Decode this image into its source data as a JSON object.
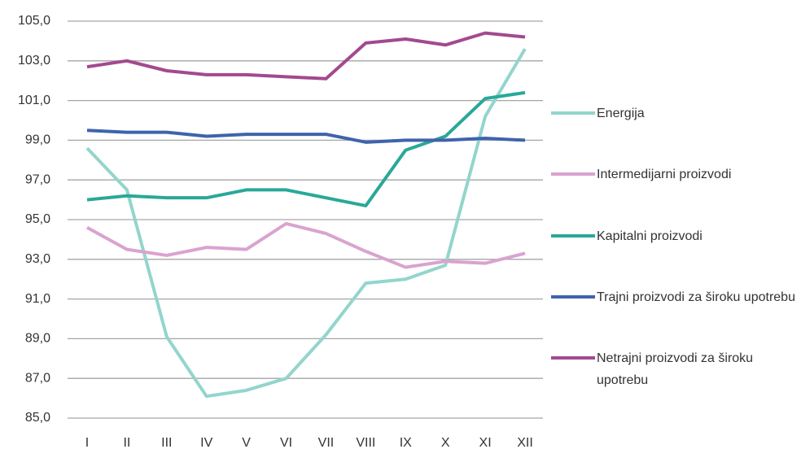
{
  "chart_data": {
    "type": "line",
    "categories": [
      "I",
      "II",
      "III",
      "IV",
      "V",
      "VI",
      "VII",
      "VIII",
      "IX",
      "X",
      "XI",
      "XII"
    ],
    "series": [
      {
        "name": "Energija",
        "color": "#93d5cc",
        "values": [
          98.6,
          96.5,
          89.1,
          86.1,
          86.4,
          87.0,
          89.2,
          91.8,
          92.0,
          92.7,
          100.2,
          103.6
        ]
      },
      {
        "name": "Intermedijarni proizvodi",
        "color": "#d9a3d0",
        "values": [
          94.6,
          93.5,
          93.2,
          93.6,
          93.5,
          94.8,
          94.3,
          93.4,
          92.6,
          92.9,
          92.8,
          93.3
        ]
      },
      {
        "name": "Kapitalni proizvodi",
        "color": "#2aa898",
        "values": [
          96.0,
          96.2,
          96.1,
          96.1,
          96.5,
          96.5,
          96.1,
          95.7,
          98.5,
          99.2,
          101.1,
          101.4
        ]
      },
      {
        "name": "Trajni proizvodi za široku upotrebu",
        "color": "#3f63ad",
        "values": [
          99.5,
          99.4,
          99.4,
          99.2,
          99.3,
          99.3,
          99.3,
          98.9,
          99.0,
          99.0,
          99.1,
          99.0
        ]
      },
      {
        "name": "Netrajni proizvodi za široku upotrebu",
        "color": "#a3498f",
        "values": [
          102.7,
          103.0,
          102.5,
          102.3,
          102.3,
          102.2,
          102.1,
          103.9,
          104.1,
          103.8,
          104.4,
          104.2
        ]
      }
    ],
    "ylim": [
      85,
      105
    ],
    "yticks": [
      {
        "value": 85,
        "label": "85,0"
      },
      {
        "value": 87,
        "label": "87,0"
      },
      {
        "value": 89,
        "label": "89,0"
      },
      {
        "value": 91,
        "label": "91,0"
      },
      {
        "value": 93,
        "label": "93,0"
      },
      {
        "value": 95,
        "label": "95,0"
      },
      {
        "value": 97,
        "label": "97,0"
      },
      {
        "value": 99,
        "label": "99,0"
      },
      {
        "value": 101,
        "label": "101,0"
      },
      {
        "value": 103,
        "label": "103,0"
      },
      {
        "value": 105,
        "label": "105,0"
      }
    ],
    "grid": true,
    "legend": "right"
  }
}
